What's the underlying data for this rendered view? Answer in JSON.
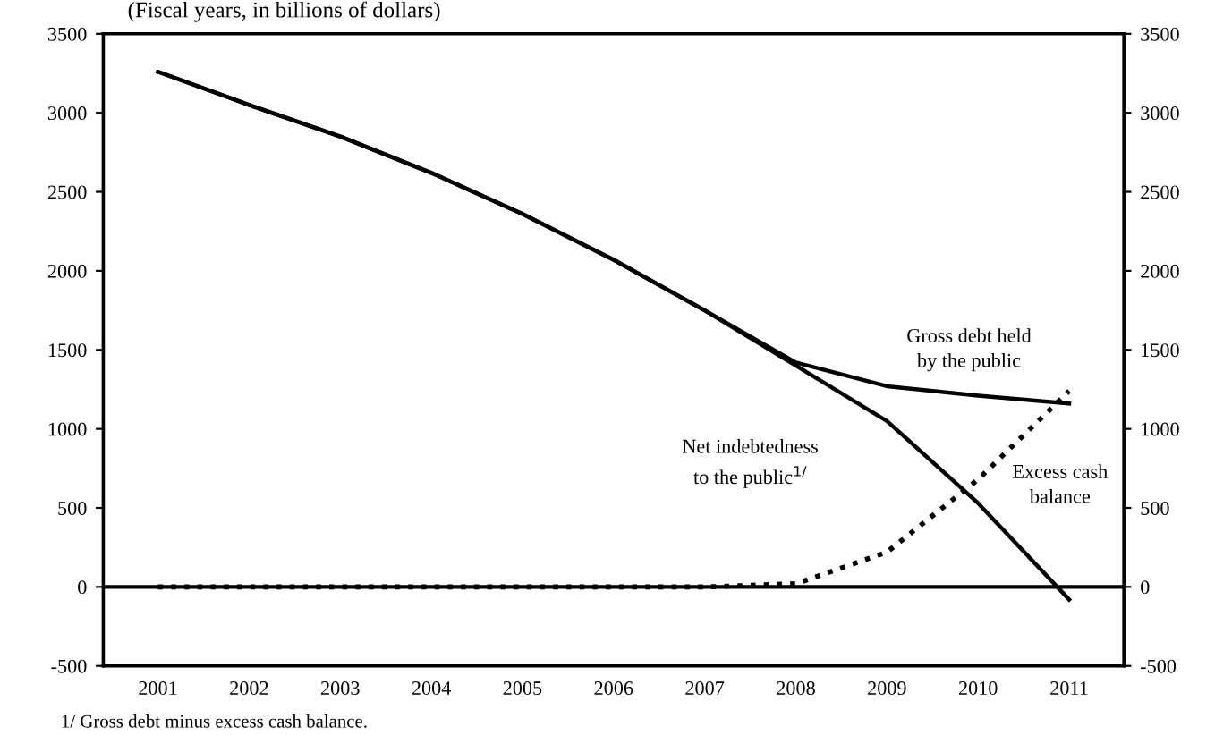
{
  "chart_data": {
    "type": "line",
    "title": "(Fiscal years, in billions of dollars)",
    "categories": [
      "2001",
      "2002",
      "2003",
      "2004",
      "2005",
      "2006",
      "2007",
      "2008",
      "2009",
      "2010",
      "2011"
    ],
    "series": [
      {
        "name": "Gross debt held\nby the public",
        "color": "#000000",
        "line_style": "solid",
        "values": [
          3260,
          3050,
          2850,
          2620,
          2360,
          2070,
          1750,
          1420,
          1270,
          1210,
          1160
        ]
      },
      {
        "name": "Net indebtedness\nto the public$^{1/}$",
        "color": "#000000",
        "line_style": "solid",
        "values": [
          3260,
          3050,
          2850,
          2620,
          2360,
          2070,
          1750,
          1400,
          1050,
          530,
          -80
        ]
      },
      {
        "name": "Excess cash\nbalance",
        "color": "#000000",
        "line_style": "dotted",
        "values": [
          0,
          0,
          0,
          0,
          0,
          0,
          0,
          20,
          220,
          680,
          1240
        ]
      }
    ],
    "ylim": [
      -500,
      3500
    ],
    "yticks": [
      -500,
      0,
      500,
      1000,
      1500,
      2000,
      2500,
      3000,
      3500
    ],
    "y2lim": [
      -500,
      3500
    ],
    "y2ticks": [
      -500,
      0,
      500,
      1000,
      1500,
      2000,
      2500,
      3000,
      3500
    ],
    "ref_lines": [
      {
        "axis": "y",
        "value": 0,
        "color": "#000000"
      }
    ],
    "grid": false,
    "legend": false,
    "marker": "none",
    "annotations": [
      "1/ Gross debt minus excess cash balance."
    ]
  }
}
